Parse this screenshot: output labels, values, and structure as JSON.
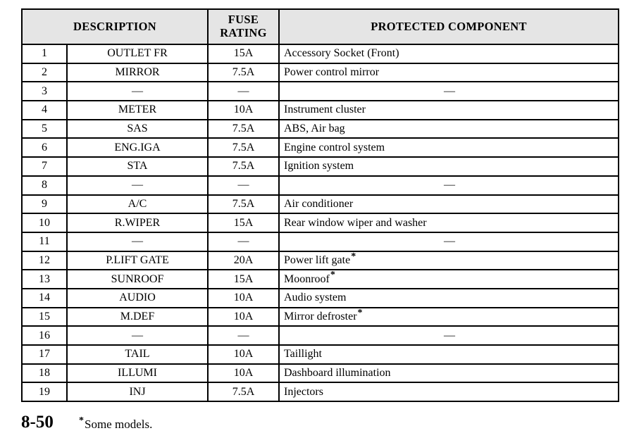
{
  "page": {
    "page_number": "8-50",
    "footnote_marker": "*",
    "footnote_text": "Some models."
  },
  "table": {
    "headers": {
      "description": "DESCRIPTION",
      "fuse_rating": "FUSE RATING",
      "protected_component": "PROTECTED COMPONENT"
    },
    "rows": [
      {
        "no": "1",
        "description": "OUTLET FR",
        "rating": "15A",
        "component": "Accessory Socket (Front)",
        "asterisk": false,
        "empty": false
      },
      {
        "no": "2",
        "description": "MIRROR",
        "rating": "7.5A",
        "component": "Power control mirror",
        "asterisk": false,
        "empty": false
      },
      {
        "no": "3",
        "description": "—",
        "rating": "—",
        "component": "—",
        "asterisk": false,
        "empty": true
      },
      {
        "no": "4",
        "description": "METER",
        "rating": "10A",
        "component": "Instrument cluster",
        "asterisk": false,
        "empty": false
      },
      {
        "no": "5",
        "description": "SAS",
        "rating": "7.5A",
        "component": "ABS, Air bag",
        "asterisk": false,
        "empty": false
      },
      {
        "no": "6",
        "description": "ENG.IGA",
        "rating": "7.5A",
        "component": "Engine control system",
        "asterisk": false,
        "empty": false
      },
      {
        "no": "7",
        "description": "STA",
        "rating": "7.5A",
        "component": "Ignition system",
        "asterisk": false,
        "empty": false
      },
      {
        "no": "8",
        "description": "—",
        "rating": "—",
        "component": "—",
        "asterisk": false,
        "empty": true
      },
      {
        "no": "9",
        "description": "A/C",
        "rating": "7.5A",
        "component": "Air conditioner",
        "asterisk": false,
        "empty": false
      },
      {
        "no": "10",
        "description": "R.WIPER",
        "rating": "15A",
        "component": "Rear window wiper and washer",
        "asterisk": false,
        "empty": false
      },
      {
        "no": "11",
        "description": "—",
        "rating": "—",
        "component": "—",
        "asterisk": false,
        "empty": true
      },
      {
        "no": "12",
        "description": "P.LIFT GATE",
        "rating": "20A",
        "component": "Power lift gate",
        "asterisk": true,
        "empty": false
      },
      {
        "no": "13",
        "description": "SUNROOF",
        "rating": "15A",
        "component": "Moonroof",
        "asterisk": true,
        "empty": false
      },
      {
        "no": "14",
        "description": "AUDIO",
        "rating": "10A",
        "component": "Audio system",
        "asterisk": false,
        "empty": false
      },
      {
        "no": "15",
        "description": "M.DEF",
        "rating": "10A",
        "component": "Mirror defroster",
        "asterisk": true,
        "empty": false
      },
      {
        "no": "16",
        "description": "—",
        "rating": "—",
        "component": "—",
        "asterisk": false,
        "empty": true
      },
      {
        "no": "17",
        "description": "TAIL",
        "rating": "10A",
        "component": "Taillight",
        "asterisk": false,
        "empty": false
      },
      {
        "no": "18",
        "description": "ILLUMI",
        "rating": "10A",
        "component": "Dashboard illumination",
        "asterisk": false,
        "empty": false
      },
      {
        "no": "19",
        "description": "INJ",
        "rating": "7.5A",
        "component": "Injectors",
        "asterisk": false,
        "empty": false
      }
    ]
  },
  "colors": {
    "header_bg": "#e5e5e5",
    "border": "#000000",
    "text": "#000000",
    "background": "#ffffff"
  }
}
